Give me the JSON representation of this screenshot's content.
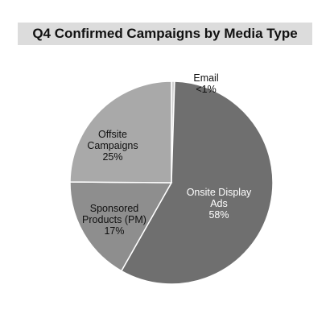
{
  "chart_data": {
    "type": "pie",
    "title": "Q4 Confirmed Campaigns by Media Type",
    "categories": [
      "Email",
      "Onsite Display Ads",
      "Sponsored Products (PM)",
      "Offsite Campaigns"
    ],
    "values": [
      0.5,
      58,
      17,
      25
    ],
    "value_labels": [
      "<1%",
      "58%",
      "17%",
      "25%"
    ],
    "colors": [
      "#d0d0d0",
      "#6f6f6f",
      "#8e8e8e",
      "#a9a9a9"
    ]
  }
}
